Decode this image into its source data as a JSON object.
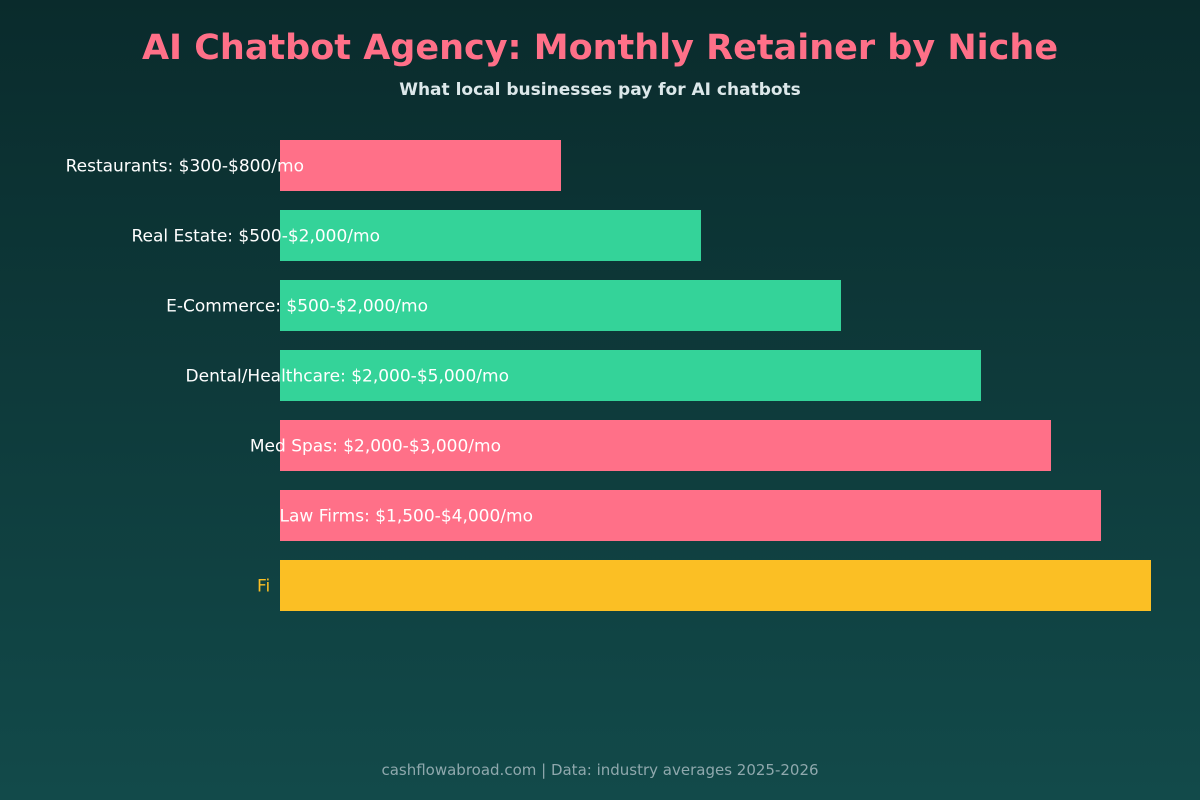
{
  "header": {
    "title": "AI Chatbot Agency: Monthly Retainer by Niche",
    "subtitle": "What local businesses pay for AI chatbots"
  },
  "footer": {
    "source": "cashflowabroad.com | Data: industry averages 2025-2026"
  },
  "chart_data": {
    "type": "bar",
    "orientation": "horizontal",
    "title": "AI Chatbot Agency: Monthly Retainer by Niche",
    "subtitle": "What local businesses pay for AI chatbots",
    "xlabel": "",
    "ylabel": "",
    "grid": false,
    "categories": [
      "Restaurants: $300-$800/mo",
      "Real Estate: $500-$2,000/mo",
      "E-Commerce: $500-$2,000/mo",
      "Dental/Healthcare: $2,000-$5,000/mo",
      "Med Spas: $2,000-$3,000/mo",
      "Law Firms: $1,500-$4,000/mo",
      "Fi"
    ],
    "values": [
      281,
      421,
      561,
      701,
      771,
      821,
      871
    ],
    "colors": [
      "#ff7088",
      "#34d399",
      "#34d399",
      "#34d399",
      "#ff7088",
      "#ff7088",
      "#fbbf24"
    ],
    "label_colors": [
      "#ffffff",
      "#ffffff",
      "#ffffff",
      "#ffffff",
      "#ffffff",
      "#ffffff",
      "#fbbf24"
    ],
    "xlim": [
      0,
      871
    ]
  }
}
